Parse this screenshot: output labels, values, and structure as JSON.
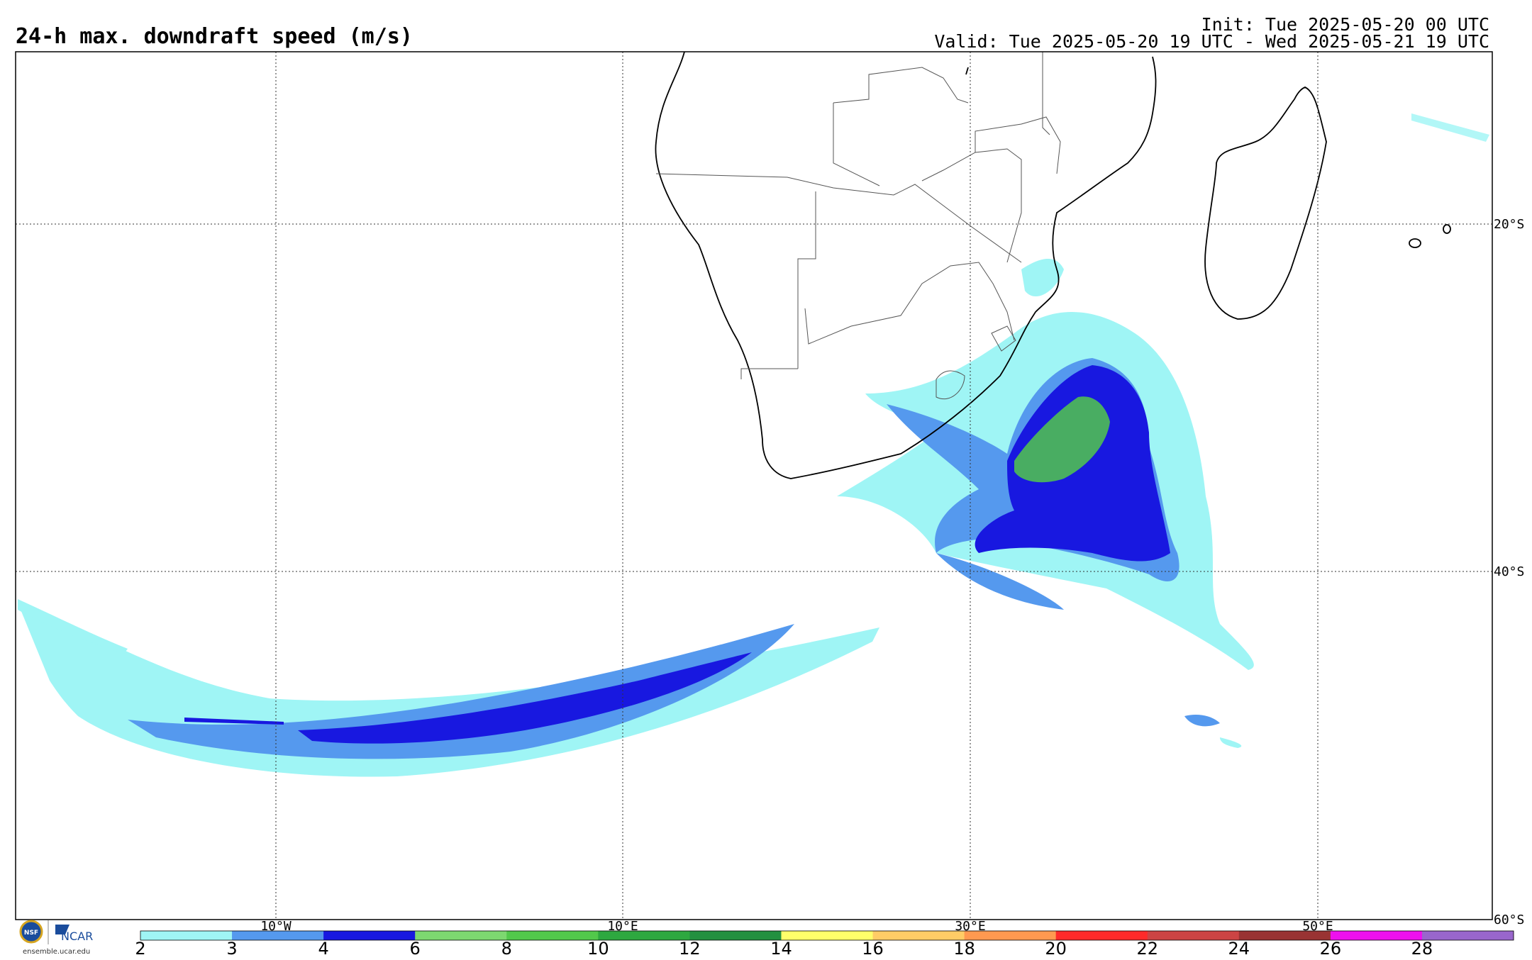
{
  "title": "24-h max. downdraft speed (m/s)",
  "init_text": "Init: Tue 2025-05-20 00 UTC",
  "valid_text": "Valid: Tue 2025-05-20 19 UTC - Wed 2025-05-21 19 UTC",
  "map": {
    "lon_range": [
      -25,
      60
    ],
    "lat_range": [
      -60,
      -10
    ],
    "lon_ticks": [
      {
        "lon": -10,
        "label": "10°W"
      },
      {
        "lon": 10,
        "label": "10°E"
      },
      {
        "lon": 30,
        "label": "30°E"
      },
      {
        "lon": 50,
        "label": "50°E"
      }
    ],
    "lat_ticks": [
      {
        "lat": -20,
        "label": "20°S"
      },
      {
        "lat": -40,
        "label": "40°S"
      },
      {
        "lat": -60,
        "label": "60°S"
      }
    ]
  },
  "colorbar": {
    "unit": "m/s",
    "levels": [
      "2",
      "3",
      "4",
      "6",
      "8",
      "10",
      "12",
      "14",
      "16",
      "18",
      "20",
      "22",
      "24",
      "26",
      "28"
    ],
    "colors": [
      "#9ff5f5",
      "#5599ee",
      "#1818e0",
      "#7dd870",
      "#52c84b",
      "#2ea840",
      "#239040",
      "#ffff6a",
      "#ffcc66",
      "#ff9950",
      "#ff2a2a",
      "#cc4444",
      "#993333",
      "#ee11ee",
      "#9966cc"
    ]
  },
  "logo": {
    "nsf": "NSF",
    "ncar": "NCAR",
    "url": "ensemble.ucar.edu"
  }
}
